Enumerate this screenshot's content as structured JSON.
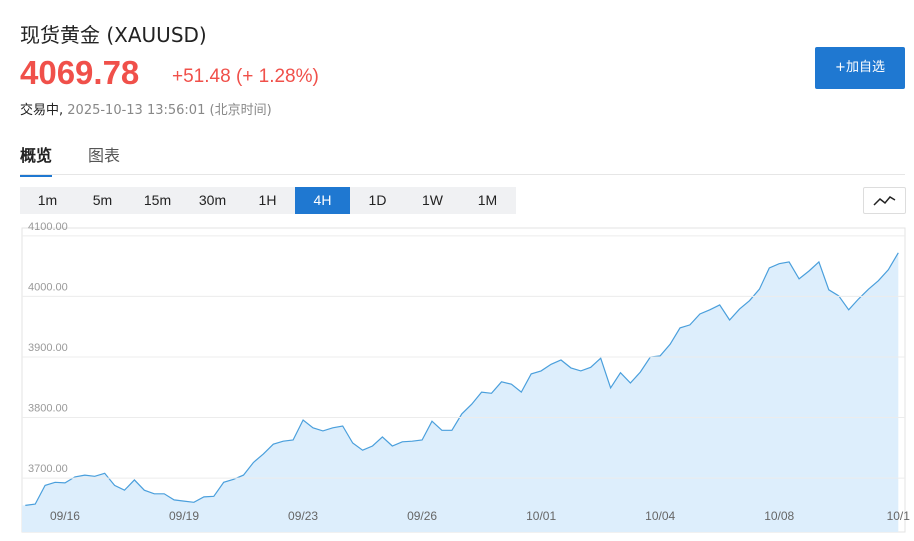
{
  "header": {
    "name": "现货黄金",
    "symbol": "(XAUUSD)",
    "price": "4069.78",
    "change": "+51.48",
    "change_pct": "(+ 1.28%)",
    "status": "交易中,",
    "time": "2025-10-13 13:56:01",
    "timezone": "(北京时间)",
    "watch_button": "+加自选"
  },
  "tabs": [
    "概览",
    "图表"
  ],
  "ranges": {
    "items": [
      "1m",
      "5m",
      "15m",
      "30m",
      "1H",
      "4H",
      "1D",
      "1W",
      "1M"
    ],
    "selected": 5
  },
  "chart_data": {
    "type": "area",
    "color": "#4a9fdc",
    "fill": "#ddeefc",
    "categories": [
      null,
      null,
      null,
      null,
      "09/16",
      null,
      null,
      null,
      null,
      null,
      null,
      null,
      null,
      null,
      null,
      null,
      "09/19",
      null,
      null,
      null,
      null,
      null,
      null,
      null,
      null,
      null,
      null,
      null,
      "09/23",
      null,
      null,
      null,
      null,
      null,
      null,
      null,
      null,
      null,
      null,
      null,
      "09/26",
      null,
      null,
      null,
      null,
      null,
      null,
      null,
      null,
      null,
      null,
      null,
      "10/01",
      null,
      null,
      null,
      null,
      null,
      null,
      null,
      null,
      null,
      null,
      null,
      "10/04",
      null,
      null,
      null,
      null,
      null,
      null,
      null,
      null,
      null,
      null,
      null,
      "10/08",
      null,
      null,
      null,
      null,
      null,
      null,
      null,
      null,
      null,
      null,
      null,
      "10/1"
    ],
    "values": [
      3655,
      3657,
      3688,
      3693,
      3692,
      3702,
      3705,
      3703,
      3708,
      3688,
      3680,
      3697,
      3680,
      3674,
      3674,
      3664,
      3662,
      3660,
      3669,
      3670,
      3693,
      3698,
      3705,
      3726,
      3740,
      3756,
      3761,
      3763,
      3796,
      3783,
      3778,
      3783,
      3786,
      3758,
      3746,
      3753,
      3768,
      3753,
      3760,
      3761,
      3763,
      3794,
      3779,
      3779,
      3806,
      3822,
      3842,
      3840,
      3859,
      3855,
      3842,
      3872,
      3877,
      3888,
      3895,
      3882,
      3877,
      3883,
      3898,
      3849,
      3874,
      3857,
      3875,
      3900,
      3902,
      3921,
      3948,
      3953,
      3971,
      3978,
      3986,
      3961,
      3979,
      3993,
      4012,
      4047,
      4054,
      4057,
      4029,
      4042,
      4057,
      4011,
      4001,
      3978,
      3996,
      4012,
      4026,
      4044,
      4072
    ],
    "ylim": [
      3611,
      4113
    ],
    "yticks": [
      {
        "value": 3700,
        "label": "3700.00"
      },
      {
        "value": 3800,
        "label": "3800.00"
      },
      {
        "value": 3900,
        "label": "3900.00"
      },
      {
        "value": 4000,
        "label": "4000.00"
      },
      {
        "value": 4100,
        "label": "4100.00"
      }
    ],
    "grid": true
  }
}
